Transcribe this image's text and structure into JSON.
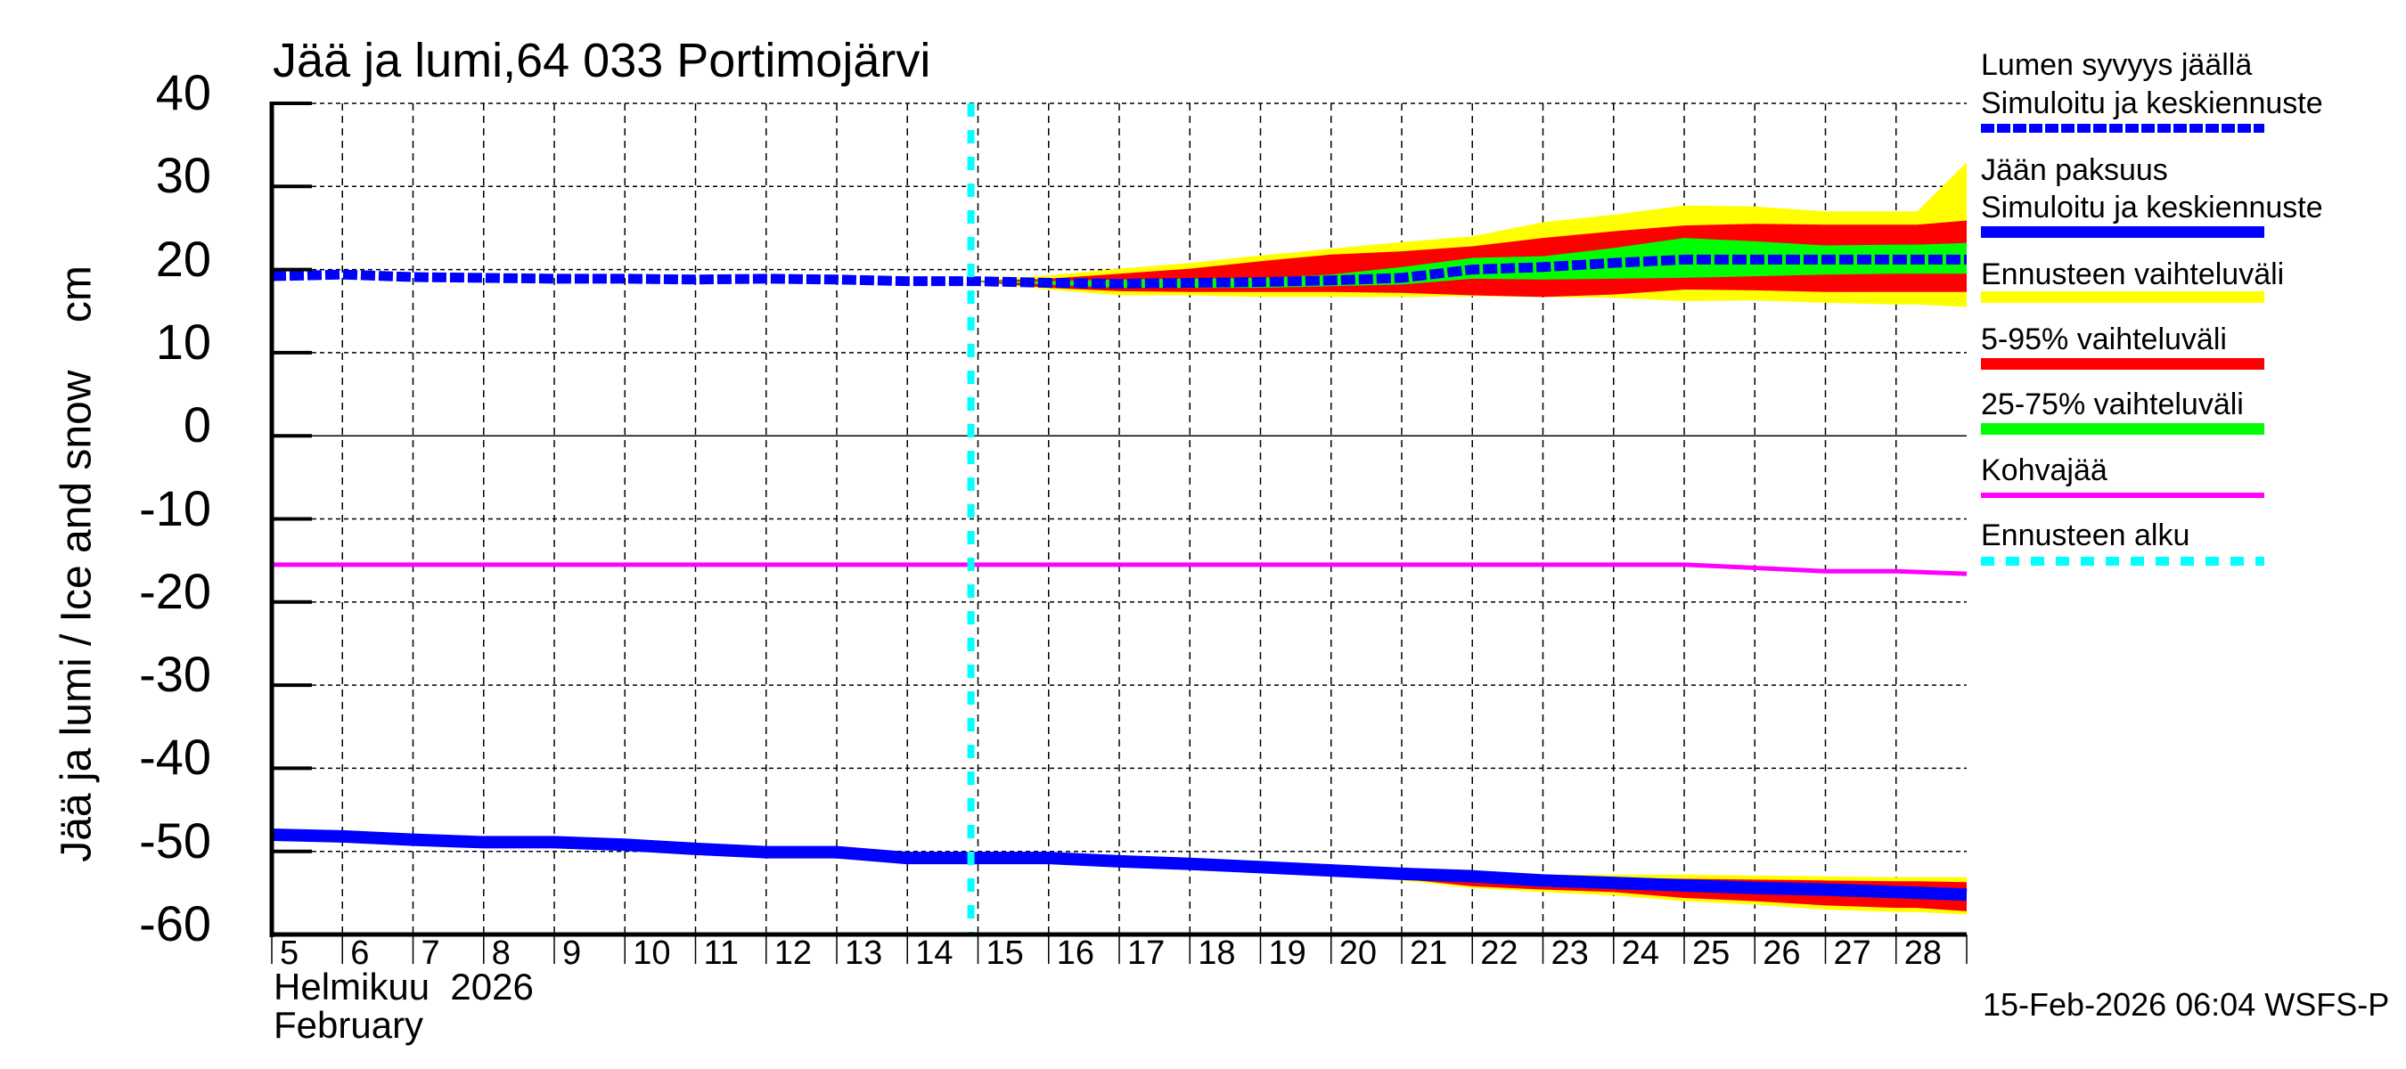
{
  "title": "Jää ja lumi,64 033 Portimojärvi",
  "y_axis_label": "Jää ja lumi / Ice and snow    cm",
  "x_axis": {
    "month_fi": "Helmikuu  2026",
    "month_en": "February",
    "day_labels": [
      "5",
      "6",
      "7",
      "8",
      "9",
      "10",
      "11",
      "12",
      "13",
      "14",
      "15",
      "16",
      "17",
      "18",
      "19",
      "20",
      "21",
      "22",
      "23",
      "24",
      "25",
      "26",
      "27",
      "28"
    ]
  },
  "y_ticks": [
    "40",
    "30",
    "20",
    "10",
    "0",
    "-10",
    "-20",
    "-30",
    "-40",
    "-50",
    "-60"
  ],
  "legend": {
    "snow_title": "Lumen syvyys jäällä",
    "snow_sub": "Simuloitu ja keskiennuste",
    "ice_title": "Jään paksuus",
    "ice_sub": "Simuloitu ja keskiennuste",
    "range_full": "Ennusteen vaihteluväli",
    "range_5_95": "5-95% vaihteluväli",
    "range_25_75": "25-75% vaihteluväli",
    "slush": "Kohvajää",
    "forecast_start": "Ennusteen alku"
  },
  "timestamp": "15-Feb-2026 06:04 WSFS-P",
  "colors": {
    "snow_line": "#0000ff",
    "ice_line": "#0000ff",
    "range_full": "#ffff00",
    "range_5_95": "#ff0000",
    "range_25_75": "#00ff00",
    "slush": "#ff00ff",
    "forecast_start": "#00ffff",
    "grid": "#000000"
  },
  "chart_data": {
    "type": "line",
    "title": "Jää ja lumi,64 033 Portimojärvi",
    "xlabel": "Helmikuu 2026 / February",
    "ylabel": "Jää ja lumi / Ice and snow cm",
    "ylim": [
      -60,
      40
    ],
    "xlim": [
      5,
      29
    ],
    "grid": true,
    "legend_position": "right",
    "forecast_start_day": 14.9,
    "x": [
      5,
      6,
      7,
      8,
      9,
      10,
      11,
      12,
      13,
      14,
      15,
      16,
      17,
      18,
      19,
      20,
      21,
      22,
      23,
      24,
      25,
      26,
      27,
      28,
      29
    ],
    "series": [
      {
        "name": "Lumen syvyys jäällä – Simuloitu ja keskiennuste",
        "style": "dashed",
        "values": [
          19.2,
          19.4,
          19.1,
          19.0,
          18.9,
          18.9,
          18.8,
          18.9,
          18.8,
          18.6,
          18.6,
          18.4,
          18.3,
          18.4,
          18.5,
          18.7,
          19.0,
          20.0,
          20.3,
          20.8,
          21.2,
          21.2,
          21.2,
          21.2,
          21.2
        ]
      },
      {
        "name": "Jään paksuus – Simuloitu ja keskiennuste",
        "style": "solid-thick",
        "values": [
          -48.0,
          -48.2,
          -48.6,
          -48.9,
          -48.9,
          -49.2,
          -49.7,
          -50.1,
          -50.1,
          -50.8,
          -50.8,
          -50.8,
          -51.2,
          -51.5,
          -51.9,
          -52.3,
          -52.7,
          -53.0,
          -53.5,
          -53.8,
          -54.1,
          -54.4,
          -54.6,
          -54.9,
          -55.2
        ]
      },
      {
        "name": "Kohvajää",
        "style": "solid",
        "values": [
          -15.5,
          -15.5,
          -15.5,
          -15.5,
          -15.5,
          -15.5,
          -15.5,
          -15.5,
          -15.5,
          -15.5,
          -15.5,
          -15.5,
          -15.5,
          -15.5,
          -15.5,
          -15.5,
          -15.5,
          -15.5,
          -15.5,
          -15.5,
          -15.5,
          -15.9,
          -16.3,
          -16.3,
          -16.6
        ]
      }
    ],
    "bands": {
      "x": [
        14.9,
        16,
        17,
        18,
        19,
        20,
        21,
        22,
        23,
        24,
        25,
        26,
        27,
        28,
        28.3,
        29
      ],
      "snow": {
        "full_upper": [
          18.6,
          19.3,
          20.1,
          20.8,
          21.7,
          22.5,
          23.3,
          24.0,
          25.7,
          26.6,
          27.7,
          27.6,
          27.0,
          27.0,
          27.0,
          32.9
        ],
        "p95": [
          18.6,
          18.9,
          19.5,
          20.1,
          21.0,
          21.8,
          22.2,
          22.8,
          23.8,
          24.6,
          25.3,
          25.5,
          25.4,
          25.4,
          25.4,
          25.9
        ],
        "p75": [
          18.6,
          18.6,
          18.8,
          18.9,
          19.0,
          19.4,
          20.3,
          21.4,
          21.6,
          22.6,
          23.8,
          23.4,
          22.9,
          23.0,
          23.0,
          23.2
        ],
        "p25": [
          18.6,
          18.2,
          17.8,
          17.8,
          17.8,
          18.0,
          18.2,
          18.9,
          18.8,
          18.9,
          19.0,
          19.2,
          19.4,
          19.5,
          19.5,
          19.5
        ],
        "p5": [
          18.6,
          17.8,
          17.4,
          17.3,
          17.3,
          17.3,
          17.2,
          16.9,
          16.7,
          17.0,
          17.6,
          17.5,
          17.3,
          17.3,
          17.3,
          17.3
        ],
        "full_lower": [
          18.6,
          17.6,
          16.9,
          16.9,
          16.7,
          16.7,
          16.7,
          16.8,
          16.7,
          16.6,
          16.2,
          16.3,
          16.0,
          15.8,
          15.8,
          15.5
        ]
      },
      "ice": {
        "full_upper": [
          -50.8,
          -50.8,
          -51.2,
          -51.5,
          -51.9,
          -52.3,
          -52.6,
          -52.8,
          -52.8,
          -52.8,
          -52.8,
          -52.9,
          -53.0,
          -53.1,
          -53.1,
          -53.1
        ],
        "p95": [
          -50.8,
          -50.8,
          -51.2,
          -51.5,
          -51.9,
          -52.3,
          -52.7,
          -52.9,
          -53.1,
          -53.2,
          -53.3,
          -53.4,
          -53.5,
          -53.6,
          -53.6,
          -53.7
        ],
        "p5": [
          -50.8,
          -50.8,
          -51.2,
          -51.5,
          -51.9,
          -52.5,
          -53.3,
          -54.2,
          -54.6,
          -54.9,
          -55.6,
          -56.0,
          -56.5,
          -56.8,
          -56.8,
          -57.2
        ],
        "full_lower": [
          -50.8,
          -50.8,
          -51.2,
          -51.5,
          -51.9,
          -52.6,
          -53.5,
          -54.4,
          -54.9,
          -55.3,
          -56.0,
          -56.4,
          -57.0,
          -57.3,
          -57.3,
          -57.6
        ]
      }
    }
  }
}
